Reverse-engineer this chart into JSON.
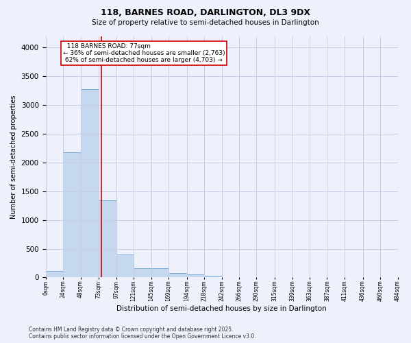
{
  "title_line1": "118, BARNES ROAD, DARLINGTON, DL3 9DX",
  "title_line2": "Size of property relative to semi-detached houses in Darlington",
  "xlabel": "Distribution of semi-detached houses by size in Darlington",
  "ylabel": "Number of semi-detached properties",
  "property_label": "118 BARNES ROAD: 77sqm",
  "pct_smaller": "36% of semi-detached houses are smaller (2,763)",
  "pct_larger": "62% of semi-detached houses are larger (4,703)",
  "property_size": 77,
  "bin_edges": [
    0,
    24,
    48,
    73,
    97,
    121,
    145,
    169,
    194,
    218,
    242,
    266,
    290,
    315,
    339,
    363,
    387,
    411,
    436,
    460,
    484
  ],
  "bar_heights": [
    110,
    2180,
    3280,
    1340,
    400,
    155,
    155,
    80,
    50,
    30,
    5,
    0,
    0,
    0,
    0,
    0,
    0,
    0,
    0,
    0
  ],
  "bar_color": "#c5d8f0",
  "bar_edge_color": "#7aadd4",
  "vline_color": "#cc0000",
  "vline_x": 77,
  "ylim": [
    0,
    4200
  ],
  "yticks": [
    0,
    500,
    1000,
    1500,
    2000,
    2500,
    3000,
    3500,
    4000
  ],
  "tick_labels": [
    "0sqm",
    "24sqm",
    "48sqm",
    "73sqm",
    "97sqm",
    "121sqm",
    "145sqm",
    "169sqm",
    "194sqm",
    "218sqm",
    "242sqm",
    "266sqm",
    "290sqm",
    "315sqm",
    "339sqm",
    "363sqm",
    "387sqm",
    "411sqm",
    "436sqm",
    "460sqm",
    "484sqm"
  ],
  "footer_line1": "Contains HM Land Registry data © Crown copyright and database right 2025.",
  "footer_line2": "Contains public sector information licensed under the Open Government Licence v3.0.",
  "bg_color": "#eef1fb",
  "plot_bg_color": "#eef1fb",
  "grid_color": "#c8cde8"
}
